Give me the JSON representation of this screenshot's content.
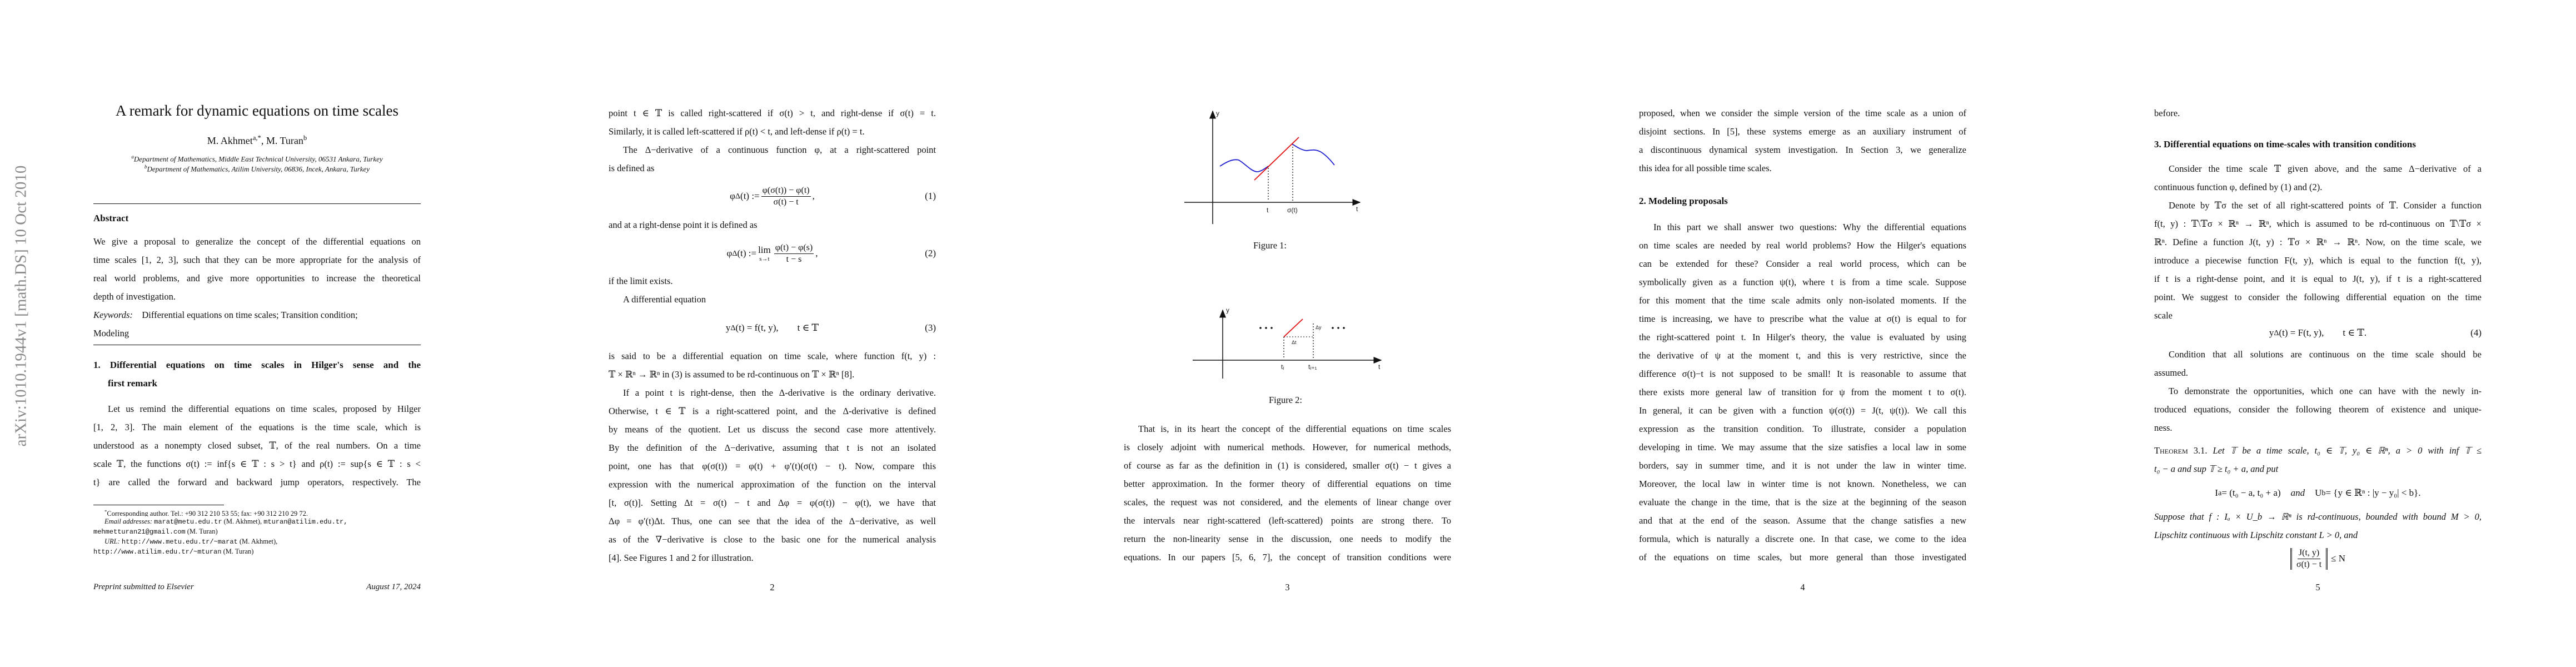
{
  "watermark": "arXiv:1010.1944v1  [math.DS]  10 Oct 2010",
  "page1": {
    "title": "A remark for dynamic equations on time scales",
    "authors": {
      "a1": "M. Akhmet",
      "a1_sup": "a,*",
      "sep": ", M. Turan",
      "a2_sup": "b"
    },
    "affiliations": [
      {
        "sup": "a",
        "text": "Department of Mathematics, Middle East Technical University, 06531 Ankara, Turkey"
      },
      {
        "sup": "b",
        "text": "Department of Mathematics, Atilim University, 06836, Incek, Ankara, Turkey"
      }
    ],
    "abstract_heading": "Abstract",
    "abstract_lines": [
      {
        "text": "We give a proposal to generalize the concept of the differential equations on"
      },
      {
        "text": "time scales [1, 2, 3], such that they can be more appropriate for the analysis of"
      },
      {
        "text": "real world problems, and give more opportunities to increase the theoretical"
      },
      {
        "text": "depth of investigation.",
        "last": true
      },
      {
        "segs": [
          {
            "text": "Keywords:",
            "style": "it"
          },
          {
            "text": " Differential equations on time scales; Transition condition;"
          }
        ],
        "last": true
      },
      {
        "text": "Modeling",
        "last": true
      }
    ],
    "section1_heading": [
      {
        "text": "1.  Differential equations on time scales in Hilger's sense and the"
      },
      {
        "text": "first remark",
        "last": true
      }
    ],
    "section1_lines": [
      {
        "text": "Let us remind the differential equations on time scales, proposed by Hilger",
        "indent": true
      },
      {
        "text": "[1, 2, 3].  The main element of the equations is the time scale, which is"
      },
      {
        "text": "understood as a nonempty closed subset, 𝕋, of the real numbers. On a time"
      },
      {
        "text": "scale 𝕋, the functions σ(t) := inf{s ∈ 𝕋 : s > t} and ρ(t) := sup{s ∈ 𝕋 : s <"
      },
      {
        "text": "t} are called the forward and backward jump operators, respectively.  The"
      }
    ],
    "footnotes": [
      {
        "segs": [
          {
            "text": "*",
            "style": "sup"
          },
          {
            "text": "Corresponding author. Tel.: +90 312 210 53 55; fax: +90 312 210 29 72."
          }
        ],
        "indent": true,
        "last": true
      },
      {
        "segs": [
          {
            "text": "Email addresses:",
            "style": "it"
          },
          {
            "text": " "
          },
          {
            "text": "marat@metu.edu.tr",
            "style": "mono"
          },
          {
            "text": " (M. Akhmet), "
          },
          {
            "text": "mturan@atilim.edu.tr,",
            "style": "mono"
          }
        ],
        "indent": true,
        "last": true
      },
      {
        "segs": [
          {
            "text": "mehmetturan21@gmail.com",
            "style": "mono"
          },
          {
            "text": " (M. Turan)"
          }
        ],
        "last": true
      },
      {
        "segs": [
          {
            "text": "URL:",
            "style": "it"
          },
          {
            "text": " "
          },
          {
            "text": "http://www.metu.edu.tr/~marat",
            "style": "mono"
          },
          {
            "text": " (M. Akhmet),"
          }
        ],
        "indent": true,
        "last": true
      },
      {
        "segs": [
          {
            "text": "http://www.atilim.edu.tr/~mturan",
            "style": "mono"
          },
          {
            "text": " (M. Turan)"
          }
        ],
        "last": true
      }
    ],
    "footer_left": "Preprint submitted to Elsevier",
    "footer_right": "August 17, 2024"
  },
  "page2": {
    "block_a": [
      {
        "text": "point t ∈ 𝕋 is called right-scattered if σ(t) > t, and right-dense if σ(t) = t."
      },
      {
        "text": "Similarly, it is called left-scattered if ρ(t) < t, and left-dense if ρ(t) = t.",
        "last": true
      },
      {
        "text": "The Δ−derivative of a continuous function φ, at a right-scattered point",
        "indent": true
      },
      {
        "text": "is defined as",
        "last": true
      }
    ],
    "eq1": {
      "base": "φ",
      "sup": "Δ",
      "mid": "(t) :=",
      "num": "φ(σ(t)) − φ(t)",
      "den": "σ(t) − t",
      "trail": ",",
      "number": "(1)"
    },
    "block_b": [
      {
        "text": "and at a right-dense point it is defined as",
        "last": true
      }
    ],
    "eq2": {
      "base": "φ",
      "sup": "Δ",
      "mid": "(t) :=",
      "lim": "lim",
      "lim_sub": "s→t",
      "num": "φ(t) − φ(s)",
      "den": "t − s",
      "trail": ",",
      "number": "(2)"
    },
    "block_c": [
      {
        "text": "if the limit exists.",
        "last": true
      },
      {
        "text": "A differential equation",
        "indent": true,
        "last": true
      }
    ],
    "eq3": {
      "base": "y",
      "sup": "Δ",
      "rest": "(t) = f(t, y),  t ∈ 𝕋",
      "number": "(3)"
    },
    "block_d": [
      {
        "text": "is said to be a differential equation on time scale, where function f(t, y) :"
      },
      {
        "text": "𝕋 × ℝⁿ → ℝⁿ in (3) is assumed to be rd-continuous on 𝕋 × ℝⁿ [8].",
        "last": true
      },
      {
        "text": "If a point t is right-dense, then the Δ-derivative is the ordinary derivative.",
        "indent": true
      },
      {
        "text": "Otherwise, t ∈ 𝕋 is a right-scattered point, and the Δ-derivative is defined"
      },
      {
        "text": "by means of the quotient.  Let us discuss the second case more attentively."
      },
      {
        "text": "By the definition of the Δ−derivative, assuming that t is not an isolated"
      },
      {
        "text": "point, one has that φ(σ(t)) = φ(t) + φ′(t)(σ(t) − t). Now, compare this"
      },
      {
        "text": "expression with the numerical approximation of the function on the interval"
      },
      {
        "text": "[t, σ(t)]. Setting Δt = σ(t) − t and Δφ = φ(σ(t)) − φ(t), we have that"
      },
      {
        "text": "Δφ = φ′(t)Δt. Thus, one can see that the idea of the Δ−derivative, as well"
      },
      {
        "text": "as of the ∇−derivative is close to the basic one for the numerical analysis"
      },
      {
        "text": "[4]. See Figures 1 and 2 for illustration.",
        "last": true
      }
    ],
    "page_number": "2"
  },
  "page3": {
    "figure1": {
      "y_label": "y",
      "t_label": "t",
      "sigma_label": "σ(t)",
      "axis_label": "t",
      "caption": "Figure 1:",
      "curve_color": "#1f1fd0",
      "tangent_color": "#e01010"
    },
    "figure2": {
      "y_label": "y",
      "dy_label": "Δy",
      "dt_label": "Δt",
      "ti_label": "tᵢ",
      "ti1_label": "tᵢ₊₁",
      "axis_label": "t",
      "caption": "Figure 2:",
      "segment_color": "#e01010"
    },
    "lines": [
      {
        "text": "That is, in its heart the concept of the differential equations on time scales",
        "indent": true
      },
      {
        "text": "is closely adjoint with numerical methods. However, for numerical methods,"
      },
      {
        "text": "of course as far as the definition in (1) is considered, smaller σ(t) − t gives a"
      },
      {
        "text": "better approximation. In the former theory of differential equations on time"
      },
      {
        "text": "scales, the request was not considered, and the elements of linear change over"
      },
      {
        "text": "the intervals near right-scattered (left-scattered) points are strong there. To"
      },
      {
        "text": "return the non-linearity sense in the discussion, one needs to modify the"
      },
      {
        "text": "equations. In our papers [5, 6, 7], the concept of transition conditions were"
      }
    ],
    "page_number": "3"
  },
  "page4": {
    "block_a": [
      {
        "text": "proposed, when we consider the simple version of the time scale as a union of"
      },
      {
        "text": "disjoint sections.  In [5], these systems emerge as an auxiliary instrument of"
      },
      {
        "text": "a discontinuous dynamical system investigation.  In Section 3, we generalize"
      },
      {
        "text": "this idea for all possible time scales.",
        "last": true
      }
    ],
    "section2_heading": [
      {
        "text": "2.  Modeling proposals",
        "last": true
      }
    ],
    "block_b": [
      {
        "text": "In this part we shall answer two questions: Why the differential equations",
        "indent": true
      },
      {
        "text": "on time scales are needed by real world problems? How the Hilger's equations"
      },
      {
        "text": "can be extended for these?  Consider a real world process, which can be"
      },
      {
        "text": "symbolically given as a function ψ(t), where t is from a time scale. Suppose"
      },
      {
        "text": "for this moment that the time scale admits only non-isolated moments. If the"
      },
      {
        "text": "time is increasing, we have to prescribe what the value at σ(t) is equal to for"
      },
      {
        "text": "the right-scattered point t. In Hilger's theory, the value is evaluated by using"
      },
      {
        "text": "the derivative of ψ at the moment t, and this is very restrictive, since the"
      },
      {
        "text": "difference σ(t)−t is not supposed to be small! It is reasonable to assume that"
      },
      {
        "text": "there exists more general law of transition for ψ from the moment t to σ(t)."
      },
      {
        "text": "In general, it can be given with a function ψ(σ(t)) = J(t, ψ(t)). We call this"
      },
      {
        "text": "expression as the transition condition.  To illustrate, consider a population"
      },
      {
        "text": "developing in time. We may assume that the size satisfies a local law in some"
      },
      {
        "text": "borders, say in summer time, and it is not under the law in winter time."
      },
      {
        "text": "Moreover, the local law in winter time is not known.  Nonetheless, we can"
      },
      {
        "text": "evaluate the change in the time, that is the size at the beginning of the season"
      },
      {
        "text": "and that at the end of the season.  Assume that the change satisfies a new"
      },
      {
        "text": "formula, which is naturally a discrete one. In that case, we come to the idea"
      },
      {
        "text": "of the equations on time scales, but more general than those investigated"
      }
    ],
    "page_number": "4"
  },
  "page5": {
    "block_a": [
      {
        "text": "before.",
        "last": true
      }
    ],
    "section3_heading": [
      {
        "text": "3.  Differential equations on time-scales with transition conditions",
        "last": true
      }
    ],
    "block_b": [
      {
        "text": "Consider the time scale 𝕋 given above, and the same Δ−derivative of a",
        "indent": true
      },
      {
        "text": "continuous function φ, defined by (1) and (2).",
        "last": true
      },
      {
        "text": "Denote by 𝕋σ the set of all right-scattered points of 𝕋. Consider a function",
        "indent": true
      },
      {
        "text": "f(t, y) : 𝕋\\𝕋σ × ℝⁿ → ℝⁿ, which is assumed to be rd-continuous on 𝕋\\𝕋σ ×"
      },
      {
        "text": "ℝⁿ. Define a function J(t, y) : 𝕋σ × ℝⁿ → ℝⁿ. Now, on the time scale, we"
      },
      {
        "text": "introduce a piecewise function F(t, y), which is equal to the function f(t, y),"
      },
      {
        "text": "if t is a right-dense point, and it is equal to J(t, y), if t is a right-scattered"
      },
      {
        "text": "point. We suggest to consider the following differential equation on the time"
      },
      {
        "text": "scale",
        "last": true
      }
    ],
    "eq4": {
      "base": "y",
      "sup": "Δ",
      "rest": "(t) = F(t, y),  t ∈ 𝕋.",
      "number": "(4)"
    },
    "block_c": [
      {
        "text": "Condition that all solutions are continuous on the time scale should be",
        "indent": true
      },
      {
        "text": "assumed.",
        "last": true
      },
      {
        "text": "To demonstrate the opportunities, which one can have with the newly in-",
        "indent": true
      },
      {
        "text": "troduced equations, consider the following theorem of existence and unique-"
      },
      {
        "text": "ness.",
        "last": true
      }
    ],
    "theorem": [
      {
        "segs": [
          {
            "text": "Theorem 3.1.",
            "style": "sc"
          },
          {
            "text": " Let 𝕋 be a time scale, t₀ ∈ 𝕋, y₀ ∈ ℝⁿ, a > 0 with inf 𝕋 ≤",
            "style": "it"
          }
        ]
      },
      {
        "segs": [
          {
            "text": "t₀ − a and sup 𝕋 ≥ t₀ + a, and put",
            "style": "it"
          }
        ],
        "last": true
      }
    ],
    "eq5": {
      "p1": "I",
      "p1_sub": "a",
      "p1_rest": " = (t₀ − a, t₀ + a)",
      "and": "and",
      "p2": "U",
      "p2_sub": "b",
      "p2_rest": " = {y ∈ ℝⁿ : |y − y₀| < b}."
    },
    "block_d": [
      {
        "segs": [
          {
            "text": "Suppose that f : Iₐ × U_b → ℝⁿ is rd-continuous, bounded with bound M > 0,",
            "style": "it"
          }
        ]
      },
      {
        "segs": [
          {
            "text": "Lipschitz continuous with Lipschitz constant L > 0, and",
            "style": "it"
          }
        ],
        "last": true
      }
    ],
    "eq6": {
      "num": "J(t, y)",
      "den": "σ(t) − t",
      "rhs": "≤ N"
    },
    "page_number": "5"
  }
}
